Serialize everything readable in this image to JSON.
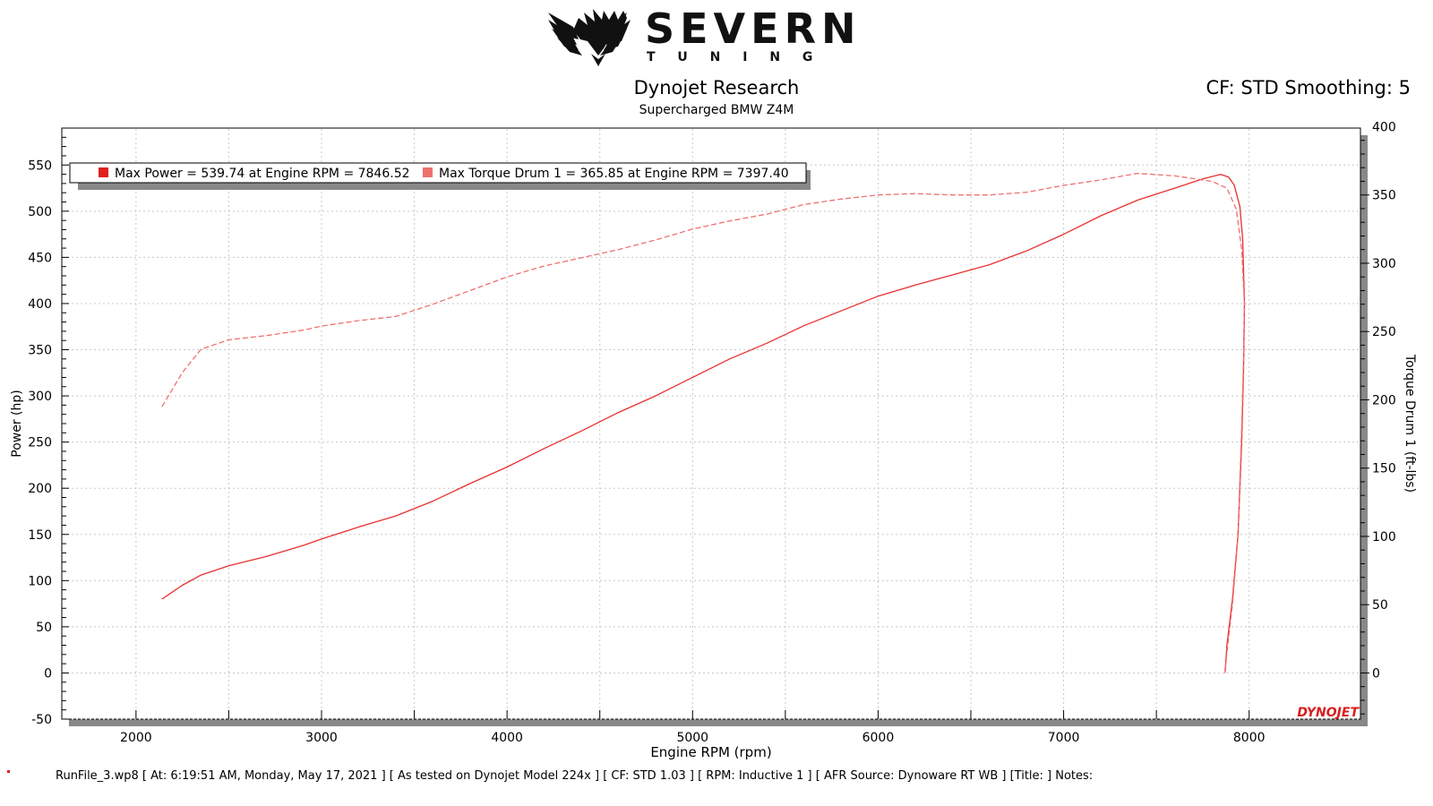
{
  "brand": {
    "name": "SEVERN",
    "sub": "T U N I N G",
    "logo_icon": "eagle-icon"
  },
  "title": "Dynojet Research",
  "subtitle": "Supercharged BMW Z4M",
  "correction": "CF: STD Smoothing: 5",
  "legend": {
    "power": "Max Power = 539.74 at Engine RPM = 7846.52",
    "torque": "Max Torque Drum 1 = 365.85 at Engine RPM = 7397.40"
  },
  "watermark": "DYNOJET",
  "footer": "RunFile_3.wp8 [ At: 6:19:51 AM, Monday, May 17, 2021 ] [ As tested on Dynojet Model 224x ] [ CF: STD 1.03 ] [ RPM: Inductive 1 ] [ AFR Source: Dynoware RT WB ] [Title: ]  Notes:",
  "chart_data": {
    "type": "line",
    "title": "Dynojet Research",
    "subtitle": "Supercharged BMW Z4M",
    "xlabel": "Engine RPM (rpm)",
    "ylabel": "Power (hp)",
    "y2label": "Torque Drum 1 (ft-lbs)",
    "xlim": [
      1600,
      8600
    ],
    "ylim": [
      -50,
      590
    ],
    "y2lim": [
      -33.8,
      399
    ],
    "xticks": [
      2000,
      3000,
      4000,
      5000,
      6000,
      7000,
      8000
    ],
    "yticks": [
      -50,
      0,
      50,
      100,
      150,
      200,
      250,
      300,
      350,
      400,
      450,
      500,
      550
    ],
    "y2ticks": [
      0,
      50,
      100,
      150,
      200,
      250,
      300,
      350,
      400
    ],
    "grid": true,
    "legend_position": "top-left",
    "colors": {
      "power": "#e8302f",
      "torque": "#f07070"
    },
    "series": [
      {
        "name": "Power",
        "axis": "left",
        "style": "solid",
        "points": [
          [
            2140,
            80
          ],
          [
            2250,
            95
          ],
          [
            2350,
            106
          ],
          [
            2500,
            116
          ],
          [
            2700,
            126
          ],
          [
            2900,
            138
          ],
          [
            3000,
            145
          ],
          [
            3200,
            158
          ],
          [
            3400,
            170
          ],
          [
            3600,
            186
          ],
          [
            3800,
            205
          ],
          [
            4000,
            223
          ],
          [
            4200,
            243
          ],
          [
            4400,
            262
          ],
          [
            4600,
            282
          ],
          [
            4800,
            300
          ],
          [
            5000,
            320
          ],
          [
            5200,
            340
          ],
          [
            5400,
            357
          ],
          [
            5600,
            376
          ],
          [
            5800,
            392
          ],
          [
            6000,
            408
          ],
          [
            6200,
            420
          ],
          [
            6400,
            431
          ],
          [
            6600,
            442
          ],
          [
            6800,
            457
          ],
          [
            7000,
            475
          ],
          [
            7200,
            495
          ],
          [
            7400,
            512
          ],
          [
            7600,
            525
          ],
          [
            7750,
            535
          ],
          [
            7846.52,
            539.74
          ],
          [
            7890,
            537
          ],
          [
            7920,
            528
          ],
          [
            7950,
            505
          ],
          [
            7965,
            470
          ],
          [
            7975,
            400
          ],
          [
            7970,
            330
          ],
          [
            7960,
            250
          ],
          [
            7940,
            150
          ],
          [
            7910,
            80
          ],
          [
            7880,
            30
          ],
          [
            7870,
            0
          ]
        ]
      },
      {
        "name": "Torque Drum 1",
        "axis": "right",
        "style": "dashed",
        "points": [
          [
            2140,
            195
          ],
          [
            2250,
            220
          ],
          [
            2350,
            237
          ],
          [
            2500,
            244
          ],
          [
            2700,
            247
          ],
          [
            2900,
            251
          ],
          [
            3000,
            254
          ],
          [
            3200,
            258
          ],
          [
            3400,
            261
          ],
          [
            3600,
            270
          ],
          [
            3800,
            280
          ],
          [
            4000,
            290
          ],
          [
            4200,
            298
          ],
          [
            4400,
            304
          ],
          [
            4600,
            310
          ],
          [
            4800,
            317
          ],
          [
            5000,
            325
          ],
          [
            5200,
            331
          ],
          [
            5400,
            336
          ],
          [
            5600,
            343
          ],
          [
            5800,
            347
          ],
          [
            6000,
            350
          ],
          [
            6200,
            351
          ],
          [
            6400,
            350
          ],
          [
            6600,
            350
          ],
          [
            6800,
            352
          ],
          [
            7000,
            357
          ],
          [
            7200,
            361
          ],
          [
            7397.4,
            365.85
          ],
          [
            7600,
            364
          ],
          [
            7800,
            360
          ],
          [
            7880,
            355
          ],
          [
            7930,
            340
          ],
          [
            7960,
            310
          ],
          [
            7975,
            270
          ],
          [
            7970,
            230
          ],
          [
            7960,
            180
          ],
          [
            7940,
            100
          ],
          [
            7910,
            50
          ],
          [
            7880,
            15
          ],
          [
            7870,
            0
          ]
        ]
      }
    ]
  }
}
